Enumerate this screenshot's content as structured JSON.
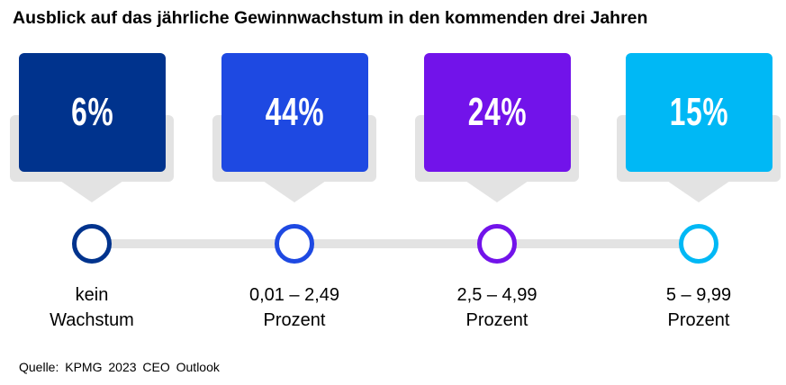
{
  "title": "Ausblick auf das jährliche Gewinnwachstum in den kommenden drei Jahren",
  "chart_data": {
    "type": "bar",
    "title": "Ausblick auf das jährliche Gewinnwachstum in den kommenden drei Jahren",
    "categories": [
      "kein Wachstum",
      "0,01 – 2,49 Prozent",
      "2,5 – 4,99 Prozent",
      "5 – 9,99 Prozent"
    ],
    "values": [
      6,
      44,
      24,
      15
    ],
    "unit": "%"
  },
  "items": [
    {
      "value": "6%",
      "line1": "kein",
      "line2": "Wachstum",
      "color": "#00338D"
    },
    {
      "value": "44%",
      "line1": "0,01 – 2,49",
      "line2": "Prozent",
      "color": "#1E49E2"
    },
    {
      "value": "24%",
      "line1": "2,5 – 4,99",
      "line2": "Prozent",
      "color": "#7213EA"
    },
    {
      "value": "15%",
      "line1": "5 – 9,99",
      "line2": "Prozent",
      "color": "#00B8F5"
    }
  ],
  "source": "Quelle: KPMG 2023 CEO Outlook"
}
